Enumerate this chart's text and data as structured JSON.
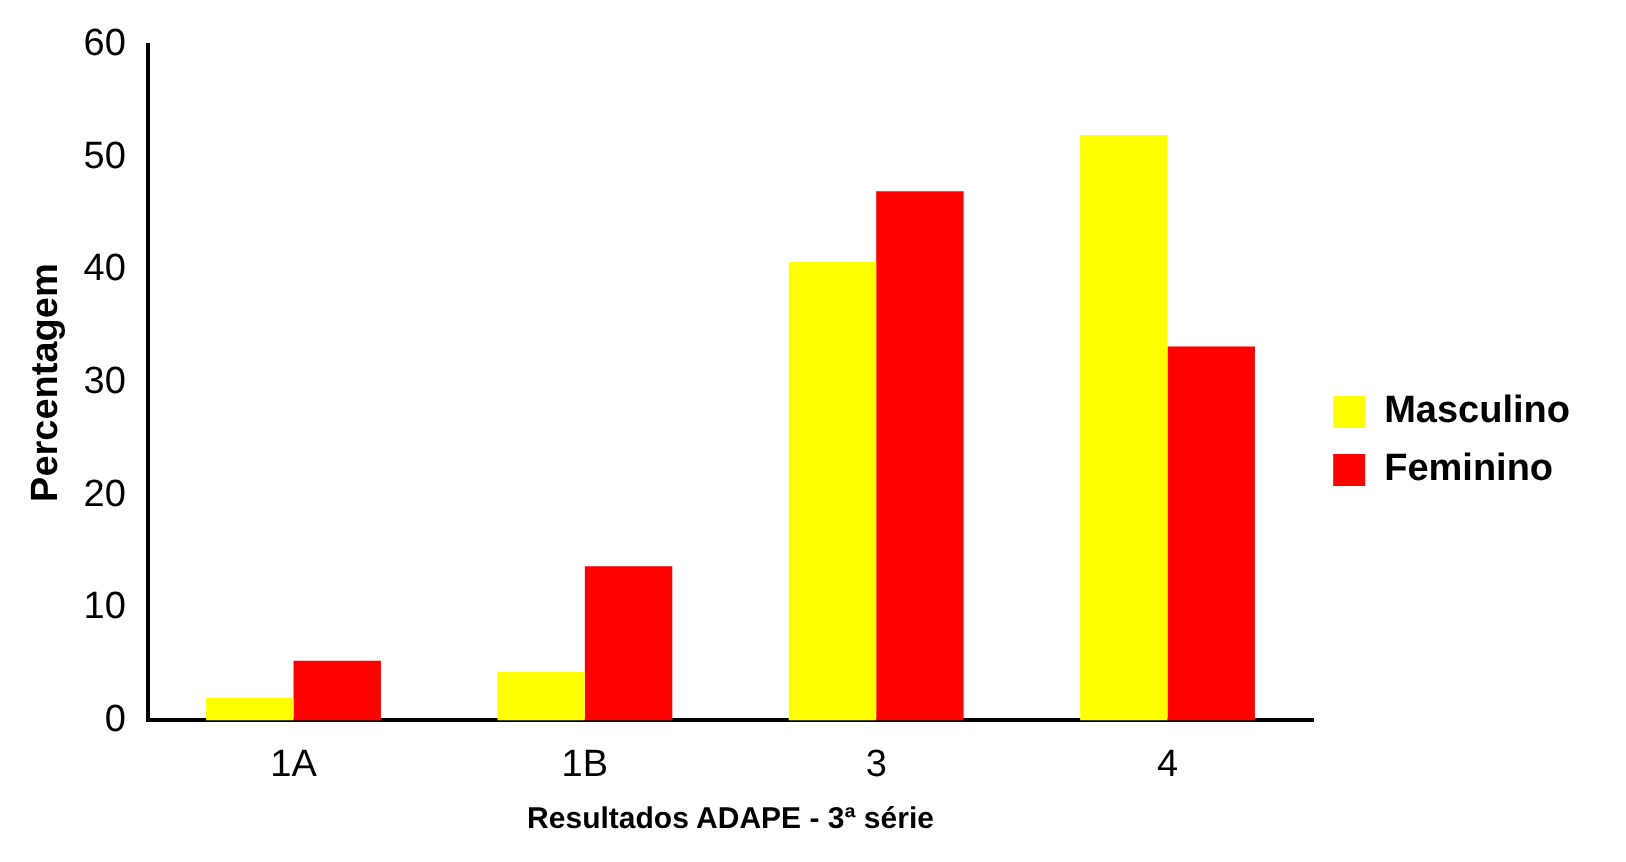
{
  "chart_data": {
    "type": "bar",
    "xlabel": "Resultados ADAPE - 3ª série",
    "ylabel": "Percentagem",
    "categories": [
      "1A",
      "1B",
      "3",
      "4"
    ],
    "series": [
      {
        "name": "Masculino",
        "color": "#ffff00",
        "values": [
          2,
          4.3,
          40.7,
          52
        ]
      },
      {
        "name": "Feminino",
        "color": "#ff0000",
        "values": [
          5.3,
          13.7,
          47,
          33.2
        ]
      }
    ],
    "ylim": [
      0,
      60
    ],
    "yticks": [
      0,
      10,
      20,
      30,
      40,
      50,
      60
    ],
    "grid": false,
    "legend": "right"
  }
}
